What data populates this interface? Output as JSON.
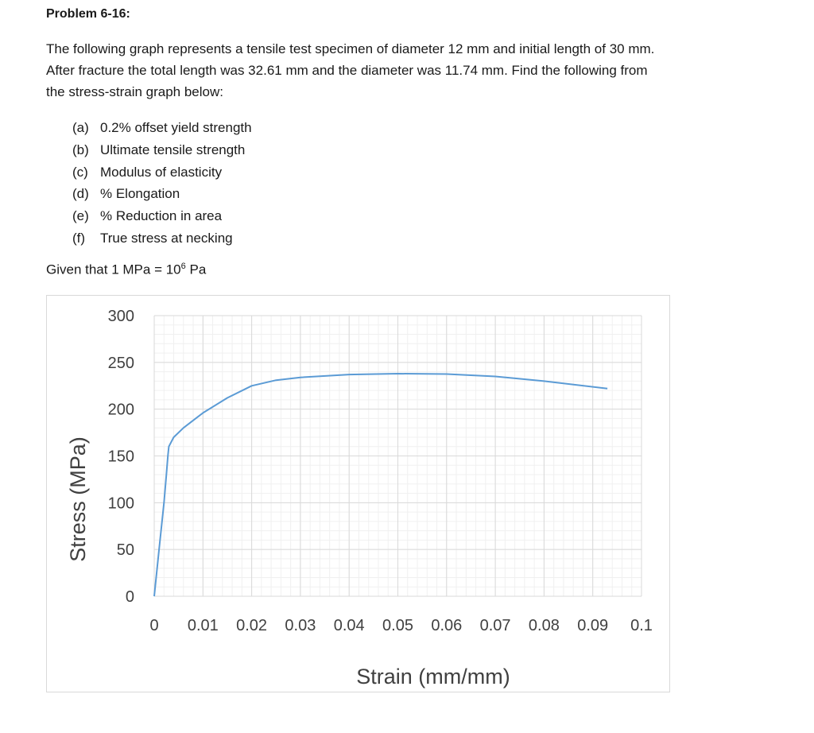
{
  "problem": {
    "title": "Problem 6-16:",
    "paragraph": [
      "The following graph represents a tensile test specimen of diameter 12 mm and initial length of 30 mm.",
      "After fracture the total length was 32.61 mm and the diameter was 11.74 mm. Find the following from",
      "the stress-strain graph below:"
    ],
    "items": [
      {
        "label": "(a)",
        "text": "0.2% offset yield strength"
      },
      {
        "label": "(b)",
        "text": "Ultimate tensile strength"
      },
      {
        "label": "(c)",
        "text": "Modulus of elasticity"
      },
      {
        "label": "(d)",
        "text": "% Elongation"
      },
      {
        "label": "(e)",
        "text": "% Reduction in area"
      },
      {
        "label": "(f)",
        "text": "True stress at necking"
      }
    ],
    "given_prefix": "Given that 1 MPa = 10",
    "given_exp": "6",
    "given_suffix": " Pa"
  },
  "chart_data": {
    "type": "line",
    "xlabel": "Strain (mm/mm)",
    "ylabel": "Stress (MPa)",
    "xlim": [
      0,
      0.1
    ],
    "ylim": [
      0,
      300
    ],
    "x_ticks": [
      "0",
      "0.01",
      "0.02",
      "0.03",
      "0.04",
      "0.05",
      "0.06",
      "0.07",
      "0.08",
      "0.09",
      "0.1"
    ],
    "y_ticks": [
      "300",
      "250",
      "200",
      "150",
      "100",
      "50",
      "0"
    ],
    "grid": true,
    "line_color": "#5b9bd5",
    "series": [
      {
        "points": [
          [
            0,
            0
          ],
          [
            0.001,
            50
          ],
          [
            0.002,
            100
          ],
          [
            0.0025,
            130
          ],
          [
            0.0028,
            150
          ],
          [
            0.003,
            160
          ],
          [
            0.004,
            170
          ],
          [
            0.006,
            180
          ],
          [
            0.008,
            188
          ],
          [
            0.01,
            196
          ],
          [
            0.015,
            212
          ],
          [
            0.02,
            225
          ],
          [
            0.025,
            231
          ],
          [
            0.03,
            234
          ],
          [
            0.04,
            237
          ],
          [
            0.05,
            238
          ],
          [
            0.06,
            237.5
          ],
          [
            0.07,
            235
          ],
          [
            0.08,
            230
          ],
          [
            0.093,
            222
          ]
        ]
      }
    ]
  }
}
